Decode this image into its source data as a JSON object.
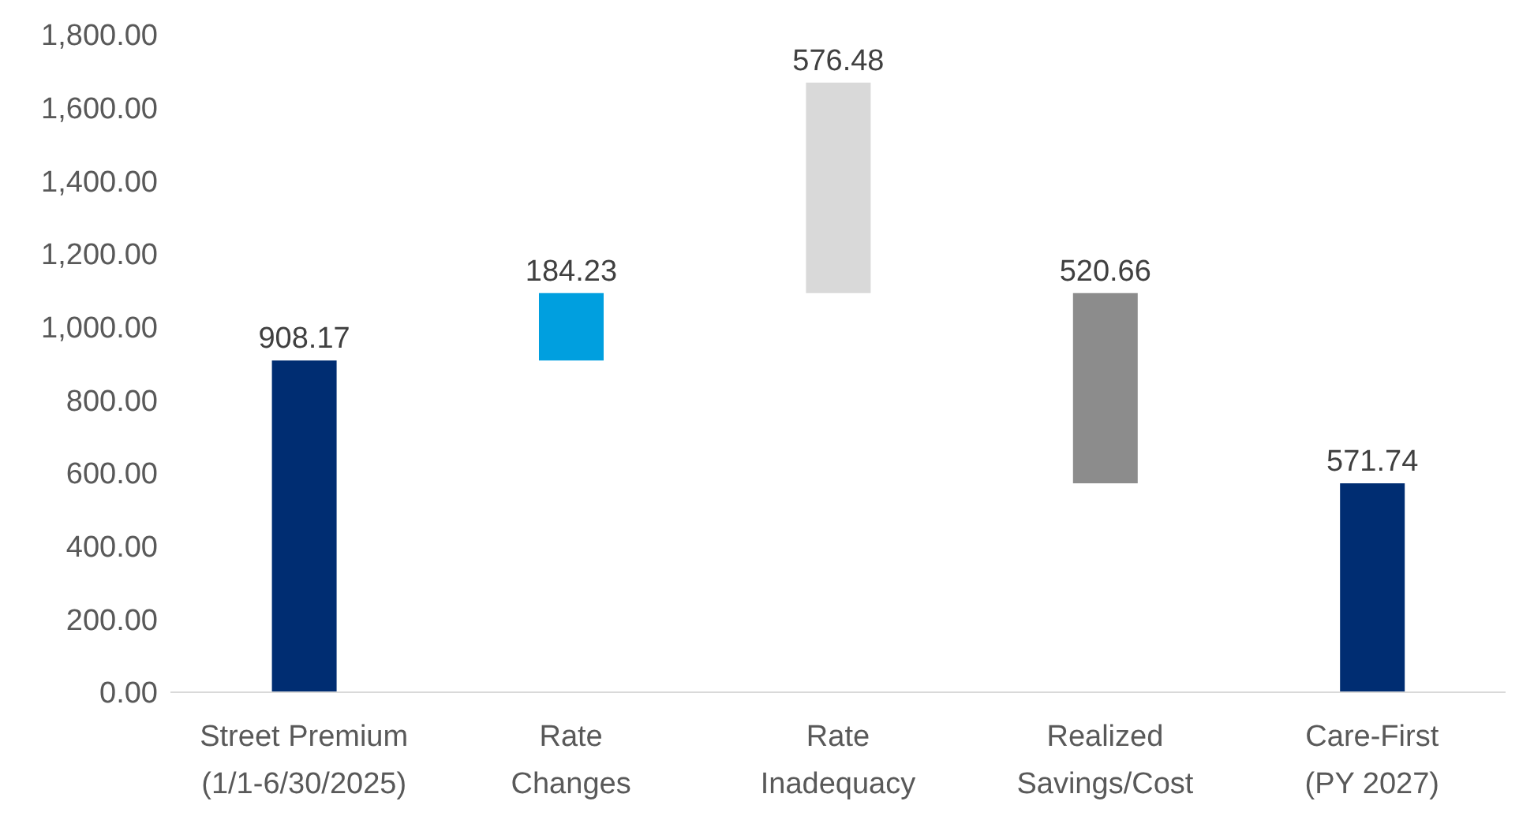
{
  "chart_data": {
    "type": "bar",
    "categories": [
      "Street Premium (1/1-6/30/2025)",
      "Rate Changes",
      "Rate Inadequacy",
      "Realized Savings/Cost",
      "Care-First (PY 2027)"
    ],
    "values": [
      908.17,
      184.23,
      576.48,
      520.66,
      571.74
    ],
    "base": [
      0,
      908.17,
      1092.4,
      571.74,
      0
    ],
    "colors": [
      "#002d72",
      "#009fdf",
      "#d9d9d9",
      "#8c8c8c",
      "#002d72"
    ],
    "ylim": [
      0,
      1800
    ],
    "yticks": [
      {
        "value": 0,
        "label": "0.00"
      },
      {
        "value": 200,
        "label": "200.00"
      },
      {
        "value": 400,
        "label": "400.00"
      },
      {
        "value": 600,
        "label": "600.00"
      },
      {
        "value": 800,
        "label": "800.00"
      },
      {
        "value": 1000,
        "label": "1,000.00"
      },
      {
        "value": 1200,
        "label": "1,200.00"
      },
      {
        "value": 1400,
        "label": "1,400.00"
      },
      {
        "value": 1600,
        "label": "1,600.00"
      },
      {
        "value": 1800,
        "label": "1,800.00"
      }
    ],
    "data_labels": true,
    "grid": false
  }
}
